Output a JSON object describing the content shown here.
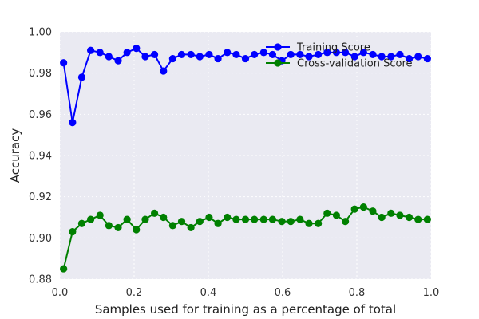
{
  "chart_data": {
    "type": "line",
    "title": "",
    "xlabel": "Samples used for training as a percentage of total",
    "ylabel": "Accuracy",
    "xlim": [
      0.0,
      1.0
    ],
    "ylim": [
      0.88,
      1.0
    ],
    "xticks": [
      "0.0",
      "0.2",
      "0.4",
      "0.6",
      "0.8",
      "1.0"
    ],
    "yticks": [
      "0.88",
      "0.90",
      "0.92",
      "0.94",
      "0.96",
      "0.98",
      "1.00"
    ],
    "grid": true,
    "legend_position": "top-right",
    "background": "#eaeaf2",
    "x": [
      0.01,
      0.034,
      0.059,
      0.083,
      0.108,
      0.132,
      0.157,
      0.181,
      0.206,
      0.23,
      0.255,
      0.279,
      0.304,
      0.328,
      0.353,
      0.377,
      0.402,
      0.426,
      0.451,
      0.475,
      0.5,
      0.524,
      0.549,
      0.573,
      0.598,
      0.622,
      0.647,
      0.671,
      0.696,
      0.72,
      0.745,
      0.769,
      0.794,
      0.818,
      0.843,
      0.867,
      0.892,
      0.916,
      0.941,
      0.965,
      0.99
    ],
    "series": [
      {
        "name": "Training Score",
        "color": "#0000ff",
        "values": [
          0.985,
          0.956,
          0.978,
          0.991,
          0.99,
          0.988,
          0.986,
          0.99,
          0.992,
          0.988,
          0.989,
          0.981,
          0.987,
          0.989,
          0.989,
          0.988,
          0.989,
          0.987,
          0.99,
          0.989,
          0.987,
          0.989,
          0.99,
          0.989,
          0.986,
          0.989,
          0.989,
          0.988,
          0.989,
          0.99,
          0.99,
          0.99,
          0.988,
          0.99,
          0.989,
          0.988,
          0.988,
          0.989,
          0.987,
          0.988,
          0.987
        ]
      },
      {
        "name": "Cross-validation Score",
        "color": "#008000",
        "values": [
          0.885,
          0.903,
          0.907,
          0.909,
          0.911,
          0.906,
          0.905,
          0.909,
          0.904,
          0.909,
          0.912,
          0.91,
          0.906,
          0.908,
          0.905,
          0.908,
          0.91,
          0.907,
          0.91,
          0.909,
          0.909,
          0.909,
          0.909,
          0.909,
          0.908,
          0.908,
          0.909,
          0.907,
          0.907,
          0.912,
          0.911,
          0.908,
          0.914,
          0.915,
          0.913,
          0.91,
          0.912,
          0.911,
          0.91,
          0.909,
          0.909
        ]
      }
    ]
  }
}
